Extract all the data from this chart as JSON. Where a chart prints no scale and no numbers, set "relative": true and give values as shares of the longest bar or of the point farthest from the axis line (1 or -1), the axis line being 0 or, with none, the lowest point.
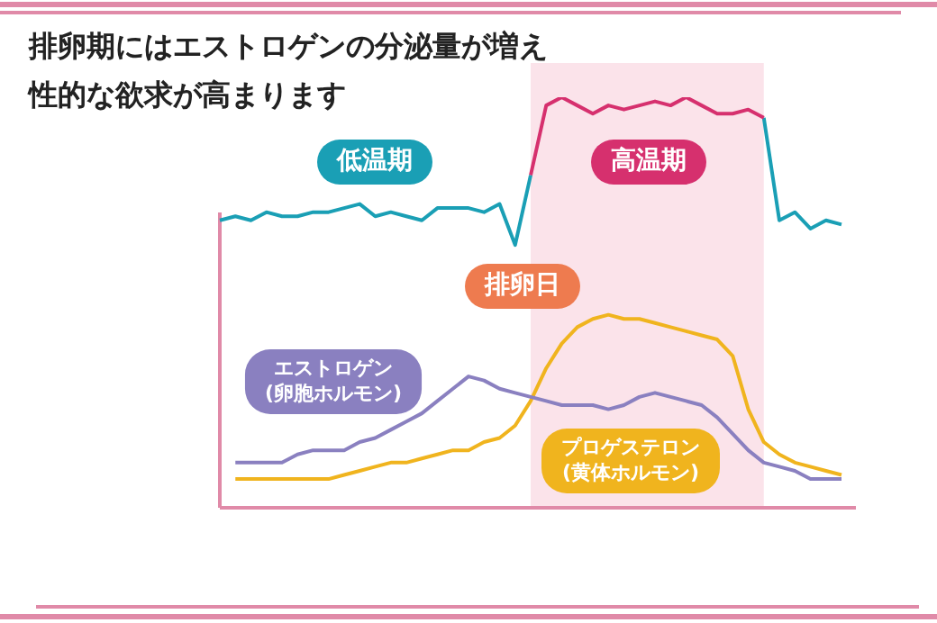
{
  "chart_data": {
    "type": "line",
    "title": "排卵期にはエストロゲンの分泌量が増え性的な欲求が高まります",
    "relative": true,
    "marker": "none",
    "legend": false,
    "categories": [
      null,
      null,
      null,
      null,
      null,
      null,
      null,
      null,
      null,
      null,
      null,
      null,
      null,
      null,
      null,
      null,
      null,
      null,
      null,
      null,
      null,
      null,
      null,
      null,
      null,
      null,
      null,
      null,
      null,
      null,
      null,
      null,
      null,
      null,
      null,
      null,
      null,
      null,
      null,
      null,
      null
    ],
    "series": [
      {
        "color": "#1a9fb5",
        "values": [
          0.7,
          0.71,
          0.7,
          0.72,
          0.71,
          0.71,
          0.72,
          0.72,
          0.73,
          0.74,
          0.71,
          0.72,
          0.71,
          0.7,
          0.73,
          0.73,
          0.73,
          0.72,
          0.74,
          0.64,
          0.81,
          null,
          null,
          null,
          null,
          null,
          null,
          null,
          null,
          null,
          null,
          null,
          null,
          null,
          null,
          null,
          null,
          null,
          null,
          null,
          null
        ]
      },
      {
        "color": "#d6306e",
        "values": [
          null,
          null,
          null,
          null,
          null,
          null,
          null,
          null,
          null,
          null,
          null,
          null,
          null,
          null,
          null,
          null,
          null,
          null,
          null,
          null,
          0.81,
          0.98,
          1.0,
          0.98,
          0.96,
          0.98,
          0.97,
          0.98,
          0.99,
          0.98,
          1.0,
          0.98,
          0.96,
          0.96,
          0.97,
          0.95,
          null,
          null,
          null,
          null,
          null
        ]
      },
      {
        "color": "#1a9fb5",
        "values": [
          null,
          null,
          null,
          null,
          null,
          null,
          null,
          null,
          null,
          null,
          null,
          null,
          null,
          null,
          null,
          null,
          null,
          null,
          null,
          null,
          null,
          null,
          null,
          null,
          null,
          null,
          null,
          null,
          null,
          null,
          null,
          null,
          null,
          null,
          null,
          0.95,
          0.7,
          0.72,
          0.68,
          0.7,
          0.69
        ]
      },
      {
        "name": "エストロゲン (卵胞ホルモン)",
        "color": "#8a80c0",
        "values": [
          null,
          0.11,
          0.11,
          0.11,
          0.11,
          0.13,
          0.14,
          0.14,
          0.14,
          0.16,
          0.17,
          0.19,
          0.21,
          0.23,
          0.26,
          0.29,
          0.32,
          0.31,
          0.29,
          0.28,
          0.27,
          0.26,
          0.25,
          0.25,
          0.25,
          0.24,
          0.25,
          0.27,
          0.28,
          0.27,
          0.26,
          0.25,
          0.22,
          0.18,
          0.14,
          0.11,
          0.1,
          0.09,
          0.07,
          0.07,
          0.07
        ]
      },
      {
        "name": "プロゲステロン (黄体ホルモン)",
        "color": "#f0b41e",
        "values": [
          null,
          0.07,
          0.07,
          0.07,
          0.07,
          0.07,
          0.07,
          0.07,
          0.08,
          0.09,
          0.1,
          0.11,
          0.11,
          0.12,
          0.13,
          0.14,
          0.14,
          0.16,
          0.17,
          0.2,
          0.26,
          0.34,
          0.4,
          0.44,
          0.46,
          0.47,
          0.46,
          0.46,
          0.45,
          0.44,
          0.43,
          0.42,
          0.41,
          0.37,
          0.24,
          0.16,
          0.13,
          0.11,
          0.1,
          0.09,
          0.08
        ]
      }
    ],
    "annotations": [
      "低温期",
      "高温期",
      "排卵日"
    ]
  }
}
